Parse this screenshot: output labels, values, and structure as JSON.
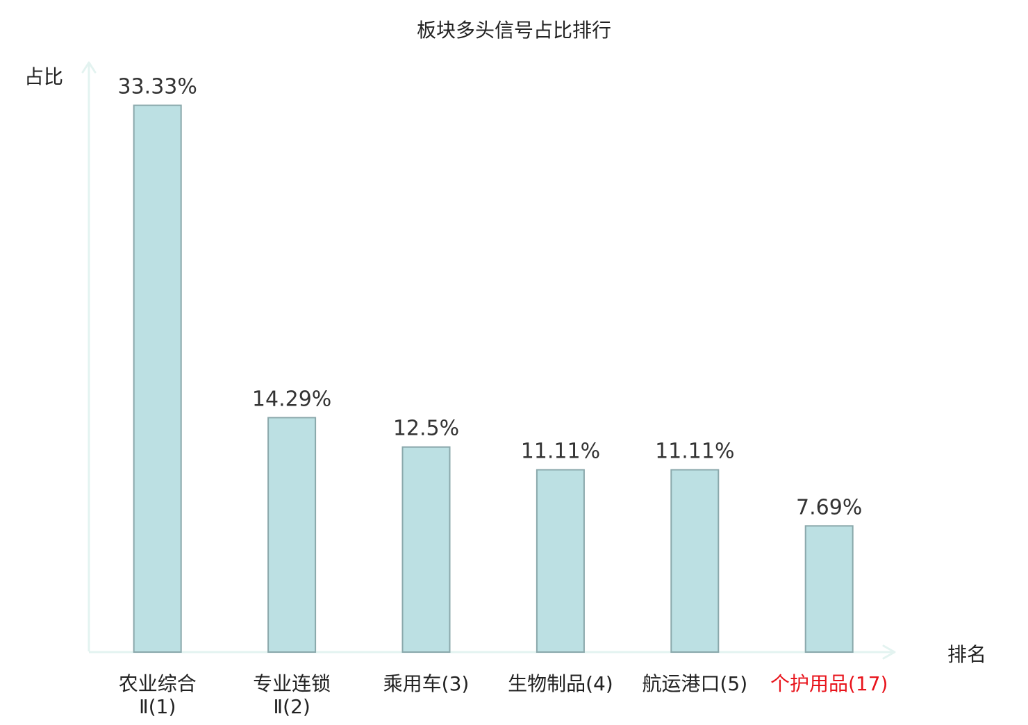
{
  "chart_data": {
    "type": "bar",
    "title": "板块多头信号占比排行",
    "xlabel": "排名",
    "ylabel": "占比",
    "categories": [
      {
        "name_lines": [
          "农业综合",
          "Ⅱ(1)"
        ],
        "highlight": false
      },
      {
        "name_lines": [
          "专业连锁",
          "Ⅱ(2)"
        ],
        "highlight": false
      },
      {
        "name_lines": [
          "乘用车(3)"
        ],
        "highlight": false
      },
      {
        "name_lines": [
          "生物制品(4)"
        ],
        "highlight": false
      },
      {
        "name_lines": [
          "航运港口(5)"
        ],
        "highlight": false
      },
      {
        "name_lines": [
          "个护用品(17)"
        ],
        "highlight": true
      }
    ],
    "values": [
      33.33,
      14.29,
      12.5,
      11.11,
      11.11,
      7.69
    ],
    "value_labels": [
      "33.33%",
      "14.29%",
      "12.5%",
      "11.11%",
      "11.11%",
      "7.69%"
    ],
    "unit": "%",
    "ylim": [
      0,
      34.2
    ],
    "grid": false,
    "legend": "none",
    "colors": {
      "bar_fill": "#bce0e3",
      "bar_stroke": "#8aa8ab",
      "axis": "#e3f3f0",
      "highlight_label": "#e8141c",
      "text": "#222222",
      "value_label": "#333333"
    }
  }
}
